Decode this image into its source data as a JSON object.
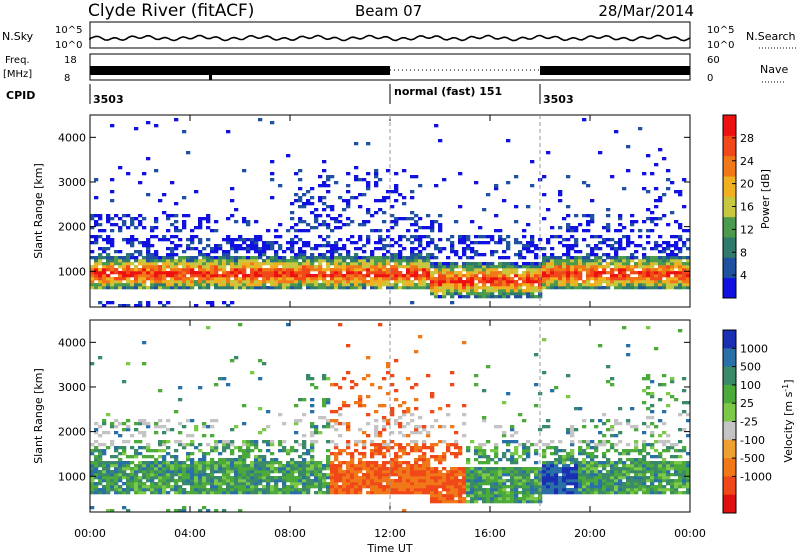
{
  "header": {
    "station": "Clyde River (fitACF)",
    "beam": "Beam 07",
    "date": "28/Mar/2014"
  },
  "top_panels": {
    "nsky_label": "N.Sky",
    "nsky_ticks": [
      "10^5",
      "10^0"
    ],
    "nsearch_label": "N.Search",
    "nsearch_ticks": [
      "10^5",
      "10^0"
    ],
    "freq_label": "Freq.",
    "freq_unit": "[MHz]",
    "freq_ticks": [
      "18",
      "8"
    ],
    "nave_label": "Nave",
    "nave_ticks": [
      "60",
      "0"
    ],
    "cpid_label": "CPID",
    "cpid_segments": [
      {
        "start_hour": 0,
        "label": "3503"
      },
      {
        "start_hour": 12,
        "label": "normal (fast) 151"
      },
      {
        "start_hour": 18,
        "label": "3503"
      }
    ]
  },
  "chart_data": [
    {
      "type": "heatmap",
      "title": "",
      "xlabel": "Time UT",
      "ylabel": "Slant Range [km]",
      "xlim": [
        0,
        24
      ],
      "ylim": [
        200,
        4500
      ],
      "x_ticks": [
        "00:00",
        "04:00",
        "08:00",
        "12:00",
        "16:00",
        "20:00",
        "00:00"
      ],
      "y_ticks": [
        1000,
        2000,
        3000,
        4000
      ],
      "colorbar": {
        "label": "Power [dB]",
        "range": [
          0,
          32
        ],
        "ticks": [
          4,
          8,
          12,
          16,
          20,
          24,
          28
        ],
        "colors": [
          "#1010e0",
          "#2050a0",
          "#2f7a6a",
          "#4c9a4c",
          "#c8c840",
          "#f0b020",
          "#f07818",
          "#f04818",
          "#ee1111"
        ]
      }
    },
    {
      "type": "heatmap",
      "title": "",
      "xlabel": "Time UT",
      "ylabel": "Slant Range [km]",
      "xlim": [
        0,
        24
      ],
      "ylim": [
        200,
        4500
      ],
      "x_ticks": [
        "00:00",
        "04:00",
        "08:00",
        "12:00",
        "16:00",
        "20:00",
        "00:00"
      ],
      "y_ticks": [
        1000,
        2000,
        3000,
        4000
      ],
      "colorbar": {
        "label": "Velocity [m s^-1]",
        "ticks": [
          "1000",
          "500",
          "100",
          "25",
          "-25",
          "-100",
          "-500",
          "-1000"
        ],
        "colors": [
          "#1a2fb4",
          "#2a70a8",
          "#3a8a6a",
          "#4caa3a",
          "#7cc848",
          "#c4c4c4",
          "#f0a030",
          "#f07818",
          "#f04818",
          "#e01010"
        ]
      }
    }
  ]
}
